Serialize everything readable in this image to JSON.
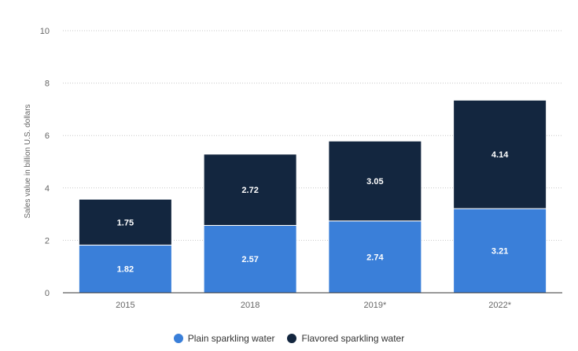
{
  "chart_data": {
    "type": "bar",
    "stacked": true,
    "categories": [
      "2015",
      "2018",
      "2019*",
      "2022*"
    ],
    "series": [
      {
        "name": "Plain sparkling water",
        "values": [
          1.82,
          2.57,
          2.74,
          3.21
        ],
        "color": "#3a7fd9"
      },
      {
        "name": "Flavored sparkling water",
        "values": [
          1.75,
          2.72,
          3.05,
          4.14
        ],
        "color": "#13263f"
      }
    ],
    "ylabel": "Sales value in billion U.S. dollars",
    "xlabel": "",
    "ylim": [
      0,
      10
    ],
    "yticks": [
      0,
      2,
      4,
      6,
      8,
      10
    ],
    "grid": true,
    "legend_position": "bottom"
  }
}
